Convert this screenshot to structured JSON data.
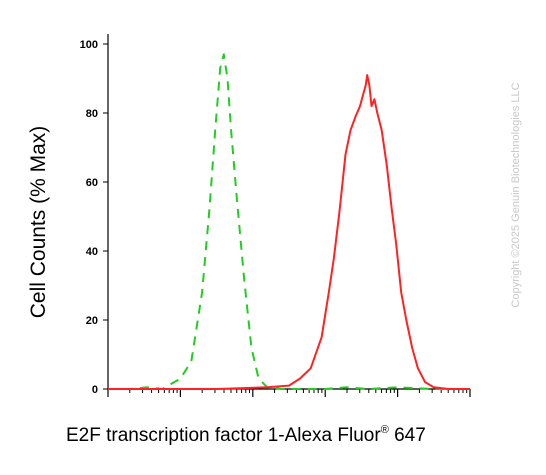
{
  "chart_data": {
    "type": "line",
    "xlabel": "E2F transcription factor 1-Alexa Fluor",
    "xlabel_superscript": "®",
    "xlabel_suffix": " 647",
    "ylabel": "Cell Counts (% Max)",
    "y_ticks": [
      "0",
      "20",
      "40",
      "60",
      "80",
      "100"
    ],
    "ylim": [
      0,
      100
    ],
    "x_scale": "log",
    "xlim_decades": [
      0,
      5
    ],
    "grid": false,
    "watermark": "Copyright ©2025 Genuin Biotechnologies LLC",
    "series": [
      {
        "style": "dashed",
        "color": "#22cc22",
        "points": [
          [
            0.0,
            0
          ],
          [
            0.3,
            0
          ],
          [
            0.55,
            0.5
          ],
          [
            0.75,
            0
          ],
          [
            1.0,
            3
          ],
          [
            1.15,
            8
          ],
          [
            1.3,
            28
          ],
          [
            1.4,
            52
          ],
          [
            1.48,
            75
          ],
          [
            1.55,
            93
          ],
          [
            1.6,
            97
          ],
          [
            1.65,
            90
          ],
          [
            1.7,
            75
          ],
          [
            1.78,
            55
          ],
          [
            1.88,
            32
          ],
          [
            1.98,
            12
          ],
          [
            2.08,
            3
          ],
          [
            2.2,
            0.5
          ],
          [
            2.4,
            0
          ],
          [
            3.0,
            0
          ],
          [
            3.3,
            0.5
          ],
          [
            3.6,
            0
          ],
          [
            4.0,
            0.5
          ],
          [
            4.5,
            0
          ],
          [
            5.0,
            0
          ]
        ]
      },
      {
        "style": "solid",
        "color": "#ff2222",
        "points": [
          [
            0.0,
            0
          ],
          [
            1.5,
            0
          ],
          [
            2.2,
            0.5
          ],
          [
            2.5,
            1
          ],
          [
            2.65,
            3
          ],
          [
            2.8,
            6
          ],
          [
            2.95,
            15
          ],
          [
            3.05,
            28
          ],
          [
            3.12,
            38
          ],
          [
            3.2,
            52
          ],
          [
            3.28,
            68
          ],
          [
            3.35,
            75
          ],
          [
            3.42,
            79
          ],
          [
            3.48,
            82
          ],
          [
            3.52,
            85
          ],
          [
            3.56,
            88
          ],
          [
            3.58,
            91
          ],
          [
            3.61,
            88
          ],
          [
            3.64,
            82
          ],
          [
            3.68,
            84
          ],
          [
            3.72,
            80
          ],
          [
            3.78,
            75
          ],
          [
            3.85,
            65
          ],
          [
            3.92,
            52
          ],
          [
            3.98,
            42
          ],
          [
            4.05,
            28
          ],
          [
            4.12,
            20
          ],
          [
            4.2,
            12
          ],
          [
            4.28,
            6
          ],
          [
            4.38,
            2
          ],
          [
            4.5,
            0.5
          ],
          [
            4.7,
            0
          ],
          [
            5.0,
            0
          ]
        ]
      }
    ]
  }
}
